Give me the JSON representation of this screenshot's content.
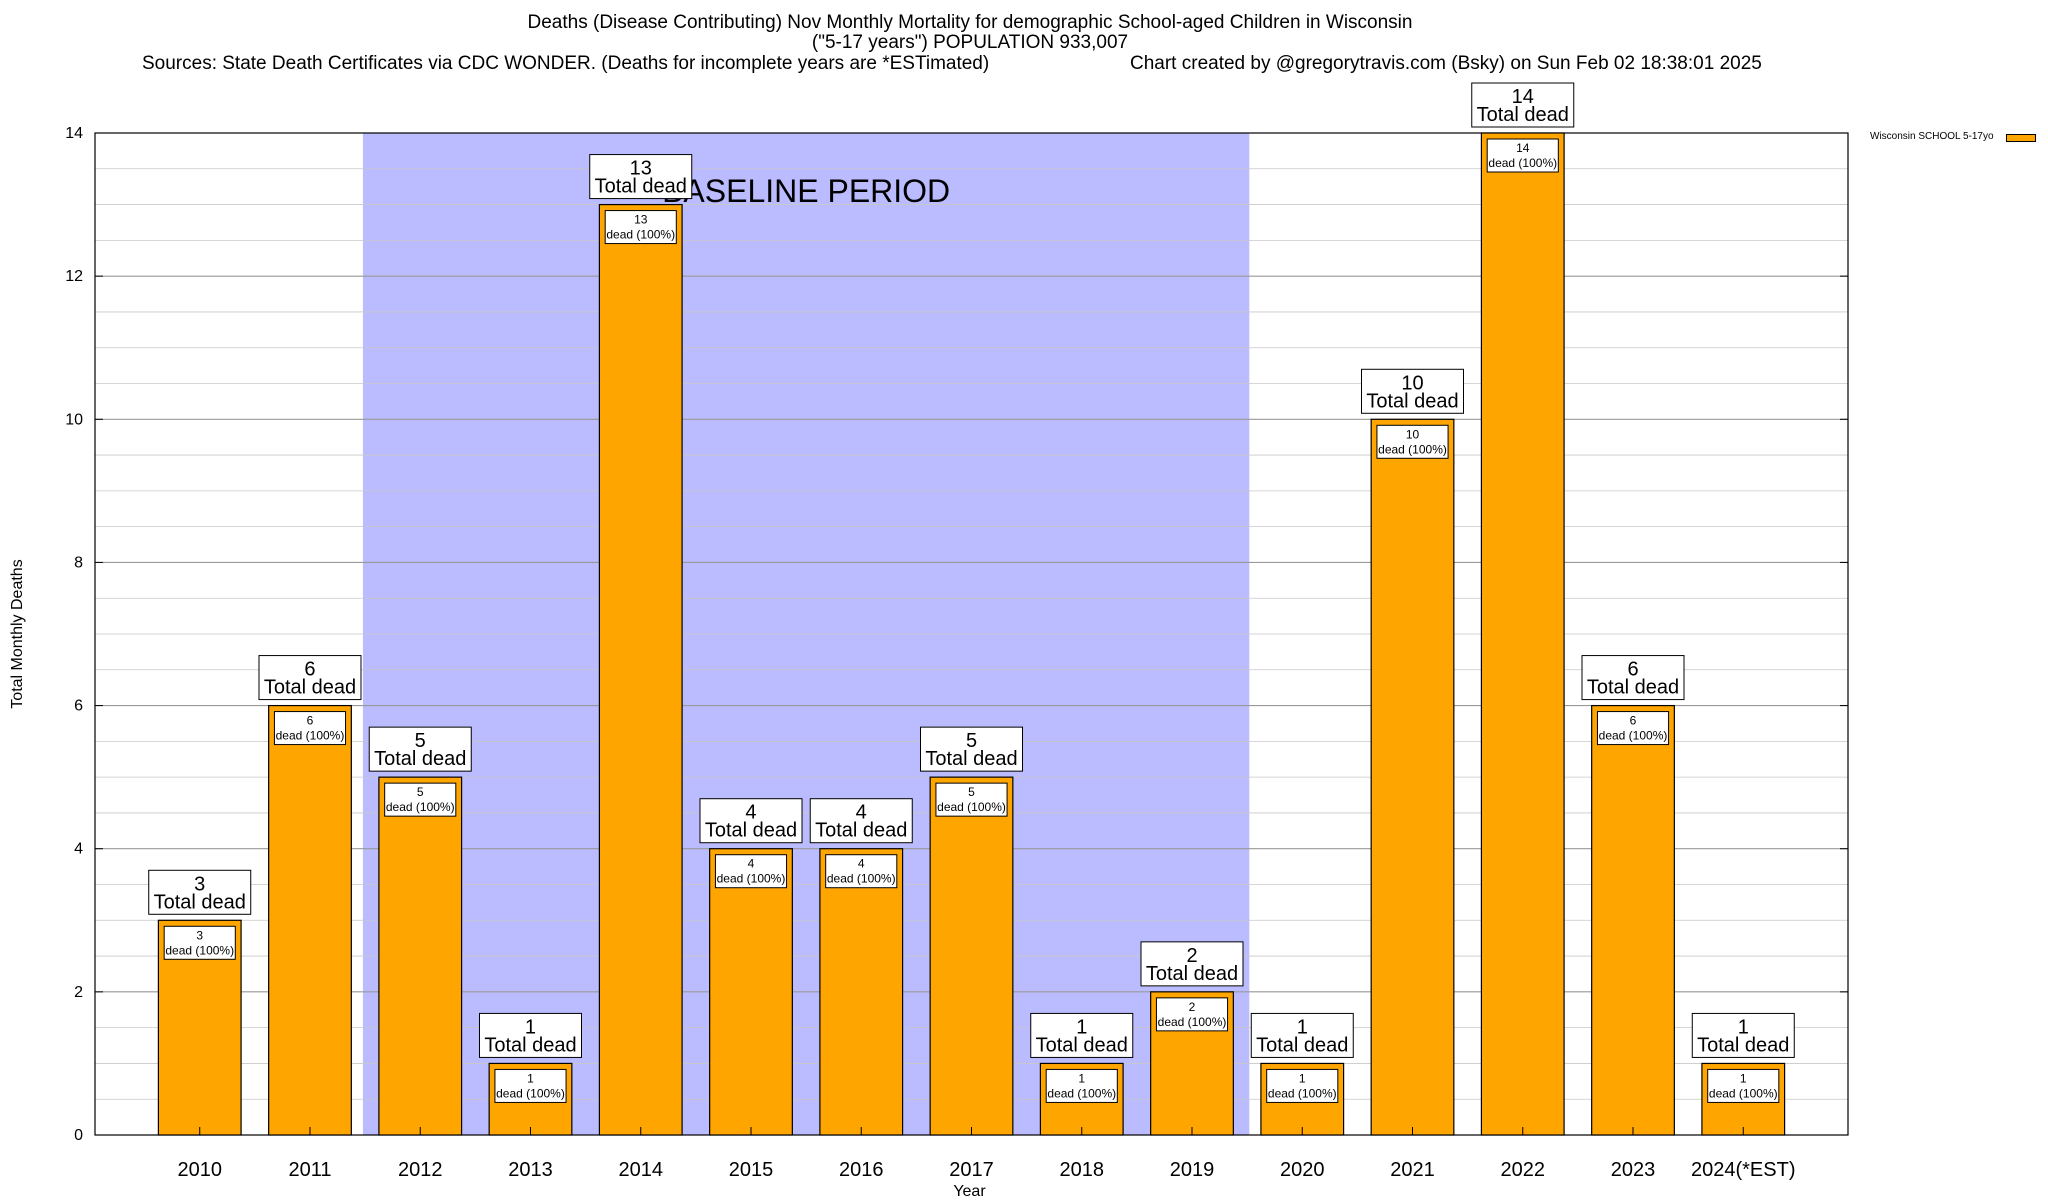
{
  "chart_data": {
    "type": "bar",
    "title_lines": [
      "Deaths (Disease Contributing) Nov Monthly Mortality for demographic School-aged Children in Wisconsin",
      "(\"5-17 years\") POPULATION 933,007"
    ],
    "source_text": "Sources: State Death Certificates via CDC WONDER. (Deaths for incomplete years are *ESTimated)",
    "credit_text": "Chart created by @gregorytravis.com (Bsky) on Sun Feb 02 18:38:01 2025",
    "xlabel": "Year",
    "ylabel": "Total Monthly Deaths",
    "ylim": [
      0,
      14
    ],
    "yticks": [
      0,
      2,
      4,
      6,
      8,
      10,
      12,
      14
    ],
    "grid": true,
    "legend_position": "top-right",
    "categories": [
      "2010",
      "2011",
      "2012",
      "2013",
      "2014",
      "2015",
      "2016",
      "2017",
      "2018",
      "2019",
      "2020",
      "2021",
      "2022",
      "2023",
      "2024(*EST)"
    ],
    "series": [
      {
        "name": "Wisconsin SCHOOL 5-17yo",
        "color": "#ffa500",
        "values": [
          3,
          6,
          5,
          1,
          13,
          4,
          4,
          5,
          1,
          2,
          1,
          10,
          14,
          6,
          1
        ]
      }
    ],
    "bar_total_suffix": "Total dead",
    "bar_inner_suffix": "dead (100%)",
    "baseline": {
      "label": "BASELINE PERIOD",
      "from_category": "2012",
      "to_category": "2019",
      "color": "#bbbbff"
    }
  }
}
